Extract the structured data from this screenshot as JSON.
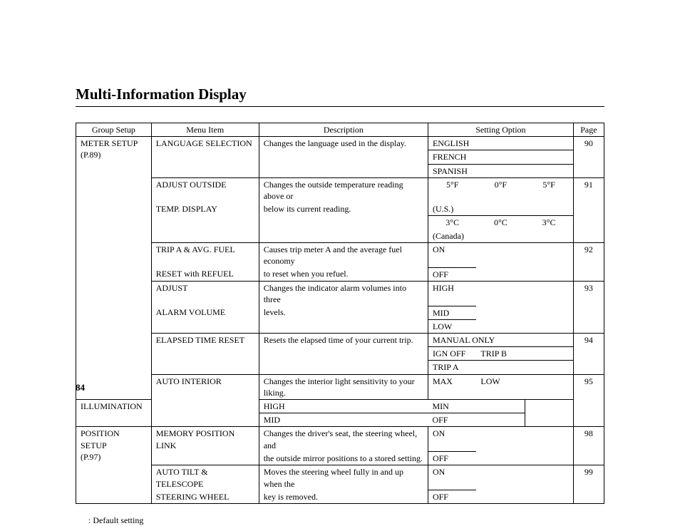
{
  "title": "Multi-Information Display",
  "footnote": ": Default setting",
  "pageNumber": "84",
  "headers": {
    "group": "Group Setup",
    "menu": "Menu Item",
    "desc": "Description",
    "opt": "Setting Option",
    "page": "Page"
  },
  "group1_line1": "METER SETUP",
  "group1_line2": "(P.89)",
  "group2_line1": "POSITION SETUP",
  "group2_line2": "(P.97)",
  "r1": {
    "menu": "LANGUAGE SELECTION",
    "desc": "Changes the language used in the display.",
    "opt_a": "ENGLISH",
    "opt_b": "FRENCH",
    "opt_c": "SPANISH",
    "page": "90"
  },
  "r2": {
    "menu1": "ADJUST OUTSIDE",
    "menu2": "TEMP. DISPLAY",
    "desc1": "Changes the outside temperature reading above or",
    "desc2": "below its current reading.",
    "us_m5": "5°F",
    "us_0": "0°F",
    "us_p5": "5°F",
    "us_label": "(U.S.)",
    "ca_m3": "3°C",
    "ca_0": "0°C",
    "ca_p3": "3°C",
    "ca_label": "(Canada)",
    "page": "91"
  },
  "r3": {
    "menu1": "TRIP A & AVG. FUEL",
    "menu2": "RESET with REFUEL",
    "desc1": "Causes trip meter A and the average fuel economy",
    "desc2": "to reset when you refuel.",
    "opt_on": "ON",
    "opt_off": "OFF",
    "page": "92"
  },
  "r4": {
    "menu1": "ADJUST",
    "menu2": "ALARM VOLUME",
    "desc1": "Changes the indicator alarm volumes into three",
    "desc2": "levels.",
    "opt_a": "HIGH",
    "opt_b": "MID",
    "opt_c": "LOW",
    "page": "93"
  },
  "r5": {
    "menu": "ELAPSED TIME RESET",
    "desc": "Resets the elapsed time of your current trip.",
    "opt_a": "MANUAL ONLY",
    "opt_b1": "IGN OFF",
    "opt_b2": "TRIP B",
    "opt_c": "TRIP A",
    "page": "94"
  },
  "r6": {
    "menu1": "AUTO INTERIOR",
    "menu2": "ILLUMINATION",
    "desc": "Changes the interior light sensitivity to your liking.",
    "opt_a1": "MAX",
    "opt_a2": "LOW",
    "opt_b1": "HIGH",
    "opt_b2": "MIN",
    "opt_c1": "MID",
    "opt_c2": "OFF",
    "page": "95"
  },
  "r7": {
    "menu": "MEMORY POSITION LINK",
    "desc1": "Changes the driver's seat, the steering wheel, and",
    "desc2": "the outside mirror positions to a stored setting.",
    "opt_on": "ON",
    "opt_off": "OFF",
    "page": "98"
  },
  "r8": {
    "menu1": "AUTO TILT & TELESCOPE",
    "menu2": "STEERING WHEEL",
    "desc1": "Moves the steering wheel fully in and up when the",
    "desc2": "key is removed.",
    "opt_on": "ON",
    "opt_off": "OFF",
    "page": "99"
  }
}
